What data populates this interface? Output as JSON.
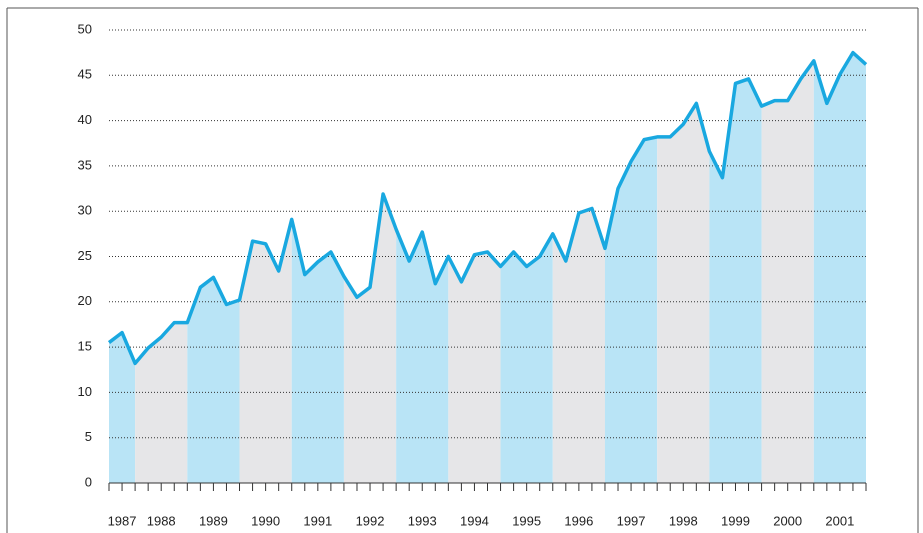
{
  "chart_data": {
    "type": "area-line",
    "x": [
      1987.5,
      1987.75,
      1988,
      1988.25,
      1988.5,
      1988.75,
      1989,
      1989.25,
      1989.5,
      1989.75,
      1990,
      1990.25,
      1990.5,
      1990.75,
      1991,
      1991.25,
      1991.5,
      1991.75,
      1992,
      1992.25,
      1992.5,
      1992.75,
      1993,
      1993.25,
      1993.5,
      1993.75,
      1994,
      1994.25,
      1994.5,
      1994.75,
      1995,
      1995.25,
      1995.5,
      1995.75,
      1996,
      1996.25,
      1996.5,
      1996.75,
      1997,
      1997.25,
      1997.5,
      1997.75,
      1998,
      1998.25,
      1998.5,
      1998.75,
      1999,
      1999.25,
      1999.5,
      1999.75,
      2000,
      2000.25,
      2000.5,
      2000.75,
      2001,
      2001.25,
      2001.5,
      2001.75,
      2002
    ],
    "values": [
      15.5,
      16.6,
      13.2,
      14.9,
      16.1,
      17.7,
      17.7,
      21.6,
      22.7,
      19.7,
      20.2,
      26.7,
      26.4,
      23.4,
      29.1,
      23.0,
      24.4,
      25.5,
      22.8,
      20.5,
      21.6,
      31.9,
      28.0,
      24.5,
      27.7,
      22.0,
      25.0,
      22.2,
      25.2,
      25.5,
      23.9,
      25.5,
      23.9,
      25.0,
      27.5,
      24.5,
      29.8,
      30.3,
      25.9,
      32.5,
      35.5,
      37.9,
      38.2,
      38.2,
      39.6,
      41.9,
      36.6,
      33.7,
      44.1,
      44.6,
      41.6,
      42.2,
      42.2,
      44.6,
      46.6,
      41.9,
      45.1,
      47.5,
      46.2
    ],
    "color": "#19a8e0",
    "bands": [
      {
        "label": "1987",
        "from": 1987.5,
        "to": 1988
      },
      {
        "label": "1988",
        "from": 1988,
        "to": 1989
      },
      {
        "label": "1989",
        "from": 1989,
        "to": 1990
      },
      {
        "label": "1990",
        "from": 1990,
        "to": 1991
      },
      {
        "label": "1991",
        "from": 1991,
        "to": 1992
      },
      {
        "label": "1992",
        "from": 1992,
        "to": 1993
      },
      {
        "label": "1993",
        "from": 1993,
        "to": 1994
      },
      {
        "label": "1994",
        "from": 1994,
        "to": 1995
      },
      {
        "label": "1995",
        "from": 1995,
        "to": 1996
      },
      {
        "label": "1996",
        "from": 1996,
        "to": 1997
      },
      {
        "label": "1997",
        "from": 1997,
        "to": 1998
      },
      {
        "label": "1998",
        "from": 1998,
        "to": 1999
      },
      {
        "label": "1999",
        "from": 1999,
        "to": 2000
      },
      {
        "label": "2000",
        "from": 2000,
        "to": 2001
      },
      {
        "label": "2001",
        "from": 2001,
        "to": 2002
      }
    ],
    "band_colors": [
      "#b9e4f6",
      "#e6e6e8"
    ],
    "xlim": [
      1987.5,
      2002
    ],
    "ylim": [
      0,
      50
    ],
    "yticks": [
      0,
      5,
      10,
      15,
      20,
      25,
      30,
      35,
      40,
      45,
      50
    ],
    "grid": true
  }
}
